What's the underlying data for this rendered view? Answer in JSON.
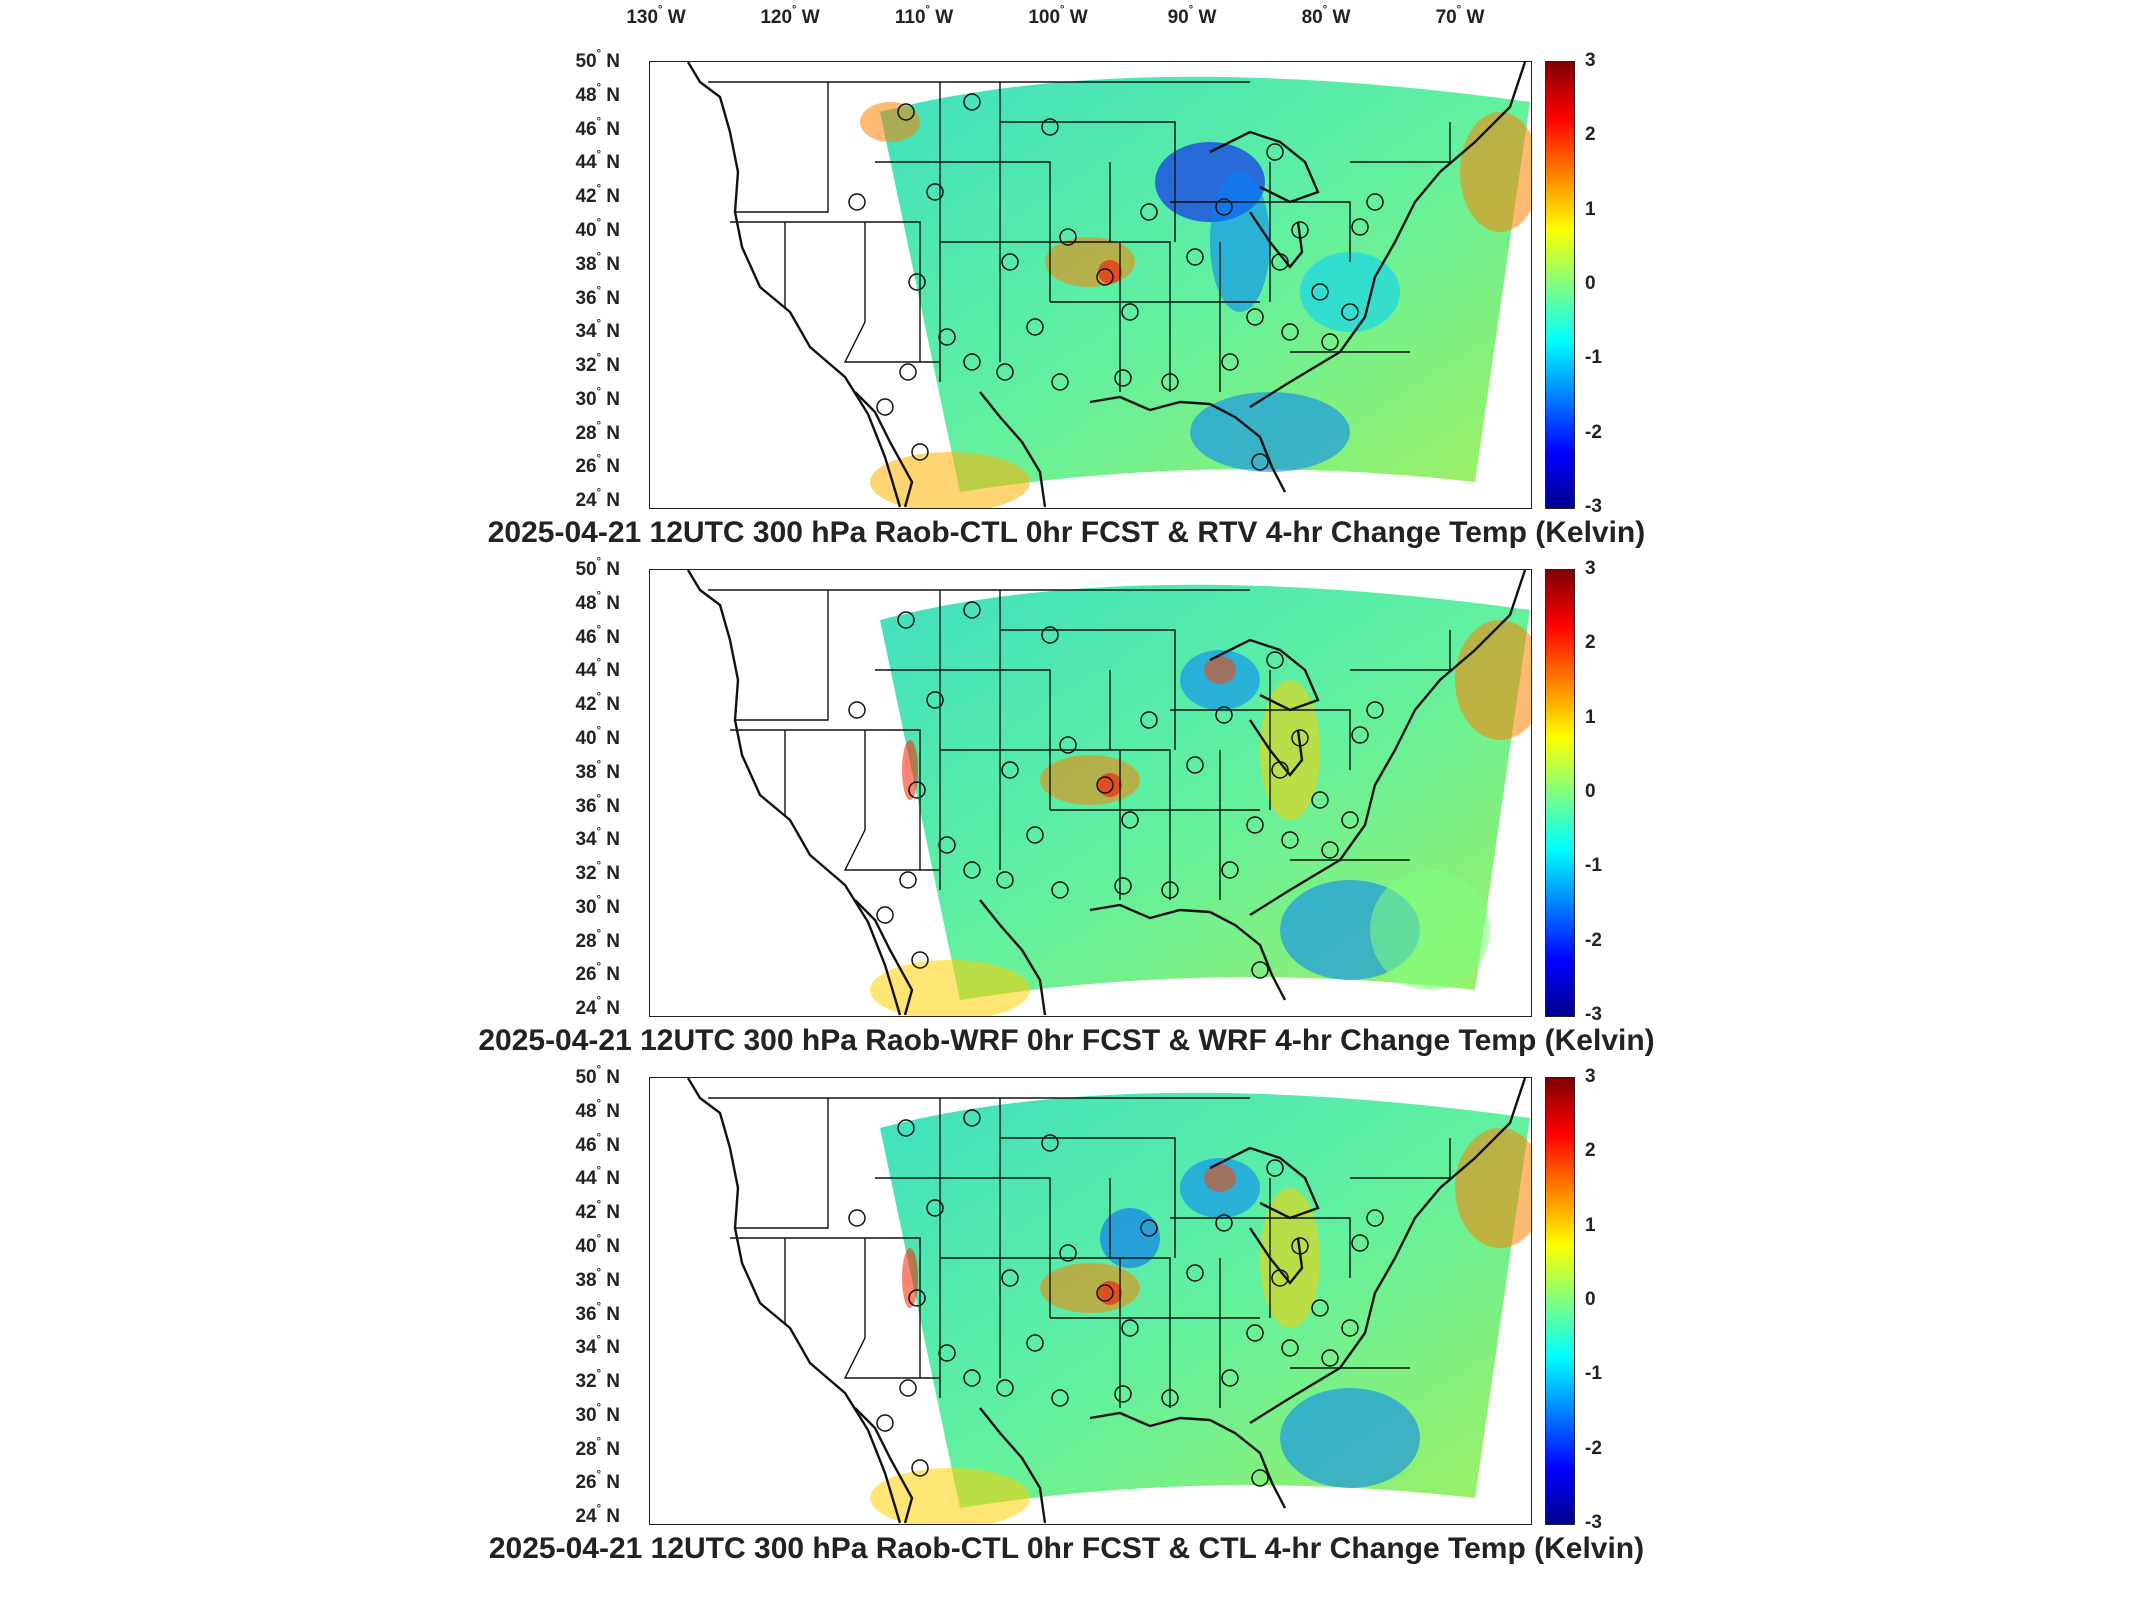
{
  "lon_labels": [
    "130",
    "120",
    "110",
    "100",
    "90",
    "80",
    "70"
  ],
  "lon_suffix": "W",
  "lat_labels": [
    "50",
    "48",
    "46",
    "44",
    "42",
    "40",
    "38",
    "36",
    "34",
    "32",
    "30",
    "28",
    "26",
    "24"
  ],
  "lat_suffix": "N",
  "colorbar": {
    "ticks": [
      "3",
      "2",
      "1",
      "0",
      "-1",
      "-2",
      "-3"
    ],
    "range": [
      -3,
      3
    ],
    "colormap": "jet"
  },
  "panels": [
    {
      "title": "2025-04-21 12UTC 300 hPa Raob-CTL 0hr FCST & RTV 4-hr Change Temp (Kelvin)"
    },
    {
      "title": "2025-04-21 12UTC 300 hPa Raob-WRF 0hr FCST & WRF 4-hr Change Temp (Kelvin)"
    },
    {
      "title": "2025-04-21 12UTC 300 hPa Raob-CTL 0hr FCST & CTL 4-hr Change Temp (Kelvin)"
    }
  ],
  "colors": {
    "neutral": "#80ff80",
    "warm": "#ff8000",
    "cool": "#0080ff"
  }
}
